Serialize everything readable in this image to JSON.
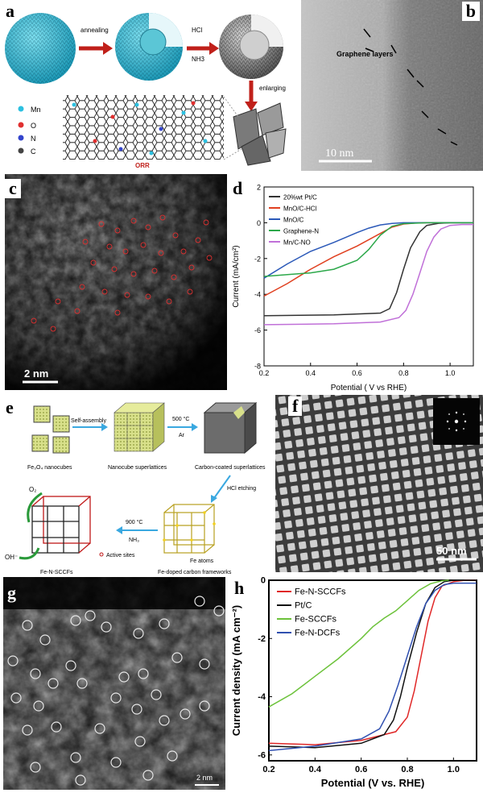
{
  "panel_labels": {
    "a": "a",
    "b": "b",
    "c": "c",
    "d": "d",
    "e": "e",
    "f": "f",
    "g": "g",
    "h": "h"
  },
  "panel_a": {
    "step1": "annealing",
    "step2_line1": "HCl",
    "step2_line2": "NH3",
    "step3": "enlarging",
    "legend": [
      "Mn",
      "O",
      "N",
      "C"
    ],
    "bottom_label": "ORR"
  },
  "panel_b": {
    "annotation": "Graphene layers",
    "scale_bar": "10 nm"
  },
  "panel_c": {
    "scale_bar": "2 nm"
  },
  "panel_e": {
    "nanocubes": "Fe₃O₄ nanocubes",
    "self_assembly": "Self-assembly",
    "superlattices": "Nanocube superlattices",
    "anneal_temp": "500 °C",
    "anneal_gas": "Ar",
    "carbon_coated": "Carbon-coated superlattices",
    "etching": "HCl etching",
    "nh3_temp": "900 °C",
    "nh3_gas": "NH₃",
    "product": "Fe-N-SCCFs",
    "framework": "Fe-doped carbon frameworks",
    "o2": "O₂",
    "oh": "OH⁻",
    "active_sites": "Active sites",
    "fe_atoms": "Fe atoms"
  },
  "panel_f": {
    "scale_bar": "50 nm"
  },
  "panel_g": {
    "scale_bar": "2 nm"
  },
  "chart_data": [
    {
      "panel": "d",
      "type": "line",
      "title": "",
      "xlabel": "Potential  ( V vs RHE)",
      "ylabel": "Current  (mA/cm²)",
      "xlim": [
        0.2,
        1.1
      ],
      "ylim": [
        -8,
        2
      ],
      "xticks": [
        0.2,
        0.4,
        0.6,
        0.8,
        1.0
      ],
      "yticks": [
        2,
        0,
        -2,
        -4,
        -6,
        -8
      ],
      "legend_position": "top-left",
      "series": [
        {
          "name": "20%wt Pt/C",
          "color": "#333333",
          "x": [
            0.2,
            0.5,
            0.7,
            0.74,
            0.77,
            0.8,
            0.83,
            0.87,
            0.9,
            0.95,
            1.0,
            1.05,
            1.1
          ],
          "y": [
            -5.2,
            -5.15,
            -5.05,
            -4.8,
            -3.9,
            -2.6,
            -1.4,
            -0.5,
            -0.15,
            -0.03,
            0,
            0,
            0
          ]
        },
        {
          "name": "MnO/C-HCl",
          "color": "#e04020",
          "x": [
            0.2,
            0.3,
            0.4,
            0.5,
            0.6,
            0.7,
            0.75,
            0.8,
            0.85,
            0.9,
            1.0,
            1.1
          ],
          "y": [
            -4.1,
            -3.4,
            -2.6,
            -1.9,
            -1.3,
            -0.6,
            -0.25,
            -0.07,
            -0.02,
            0,
            0,
            0
          ]
        },
        {
          "name": "MnO/C",
          "color": "#2a58b8",
          "x": [
            0.2,
            0.3,
            0.4,
            0.5,
            0.6,
            0.65,
            0.7,
            0.75,
            0.8,
            0.9,
            1.0,
            1.1
          ],
          "y": [
            -3.1,
            -2.3,
            -1.6,
            -1.1,
            -0.55,
            -0.3,
            -0.12,
            -0.04,
            0,
            0,
            0,
            0
          ]
        },
        {
          "name": "Graphene-N",
          "color": "#2ca84a",
          "x": [
            0.2,
            0.3,
            0.4,
            0.5,
            0.6,
            0.65,
            0.7,
            0.75,
            0.8,
            0.9,
            1.0,
            1.1
          ],
          "y": [
            -3.0,
            -2.9,
            -2.8,
            -2.6,
            -2.1,
            -1.5,
            -0.7,
            -0.2,
            -0.05,
            0,
            0,
            0
          ]
        },
        {
          "name": "Mn/C-NO",
          "color": "#c070d8",
          "x": [
            0.2,
            0.5,
            0.7,
            0.78,
            0.81,
            0.84,
            0.87,
            0.9,
            0.93,
            0.96,
            1.0,
            1.05,
            1.1
          ],
          "y": [
            -5.7,
            -5.65,
            -5.55,
            -5.3,
            -4.9,
            -4.0,
            -2.8,
            -1.6,
            -0.8,
            -0.35,
            -0.15,
            -0.1,
            -0.1
          ]
        }
      ]
    },
    {
      "panel": "h",
      "type": "line",
      "title": "",
      "xlabel": "Potential (V vs. RHE)",
      "ylabel": "Current density (mA cm⁻²)",
      "xlim": [
        0.2,
        1.1
      ],
      "ylim": [
        -6.2,
        0
      ],
      "xticks": [
        0.2,
        0.4,
        0.6,
        0.8,
        1.0
      ],
      "yticks": [
        0,
        -2,
        -4,
        -6
      ],
      "legend_position": "top-left",
      "series": [
        {
          "name": "Fe-N-SCCFs",
          "color": "#e02828",
          "x": [
            0.2,
            0.4,
            0.6,
            0.75,
            0.8,
            0.83,
            0.86,
            0.89,
            0.92,
            0.95,
            1.0,
            1.05,
            1.1
          ],
          "y": [
            -5.6,
            -5.65,
            -5.5,
            -5.2,
            -4.7,
            -3.8,
            -2.6,
            -1.4,
            -0.6,
            -0.2,
            -0.05,
            0,
            0
          ]
        },
        {
          "name": "Pt/C",
          "color": "#111111",
          "x": [
            0.2,
            0.4,
            0.6,
            0.7,
            0.74,
            0.77,
            0.8,
            0.84,
            0.88,
            0.92,
            0.96,
            1.0,
            1.1
          ],
          "y": [
            -5.7,
            -5.75,
            -5.6,
            -5.3,
            -4.8,
            -4.0,
            -3.0,
            -1.8,
            -0.8,
            -0.25,
            -0.05,
            0,
            0
          ]
        },
        {
          "name": "Fe-SCCFs",
          "color": "#6cc23a",
          "x": [
            0.2,
            0.3,
            0.4,
            0.5,
            0.6,
            0.65,
            0.7,
            0.75,
            0.8,
            0.85,
            0.9,
            0.95,
            0.98
          ],
          "y": [
            -4.35,
            -3.9,
            -3.3,
            -2.7,
            -2.0,
            -1.6,
            -1.3,
            -1.05,
            -0.7,
            -0.35,
            -0.12,
            -0.02,
            0
          ]
        },
        {
          "name": "Fe-N-DCFs",
          "color": "#3050b0",
          "x": [
            0.2,
            0.4,
            0.6,
            0.68,
            0.72,
            0.76,
            0.8,
            0.84,
            0.88,
            0.92,
            0.96,
            1.0,
            1.1
          ],
          "y": [
            -5.85,
            -5.7,
            -5.45,
            -5.1,
            -4.5,
            -3.6,
            -2.6,
            -1.6,
            -0.8,
            -0.35,
            -0.15,
            -0.1,
            -0.1
          ]
        }
      ]
    }
  ]
}
